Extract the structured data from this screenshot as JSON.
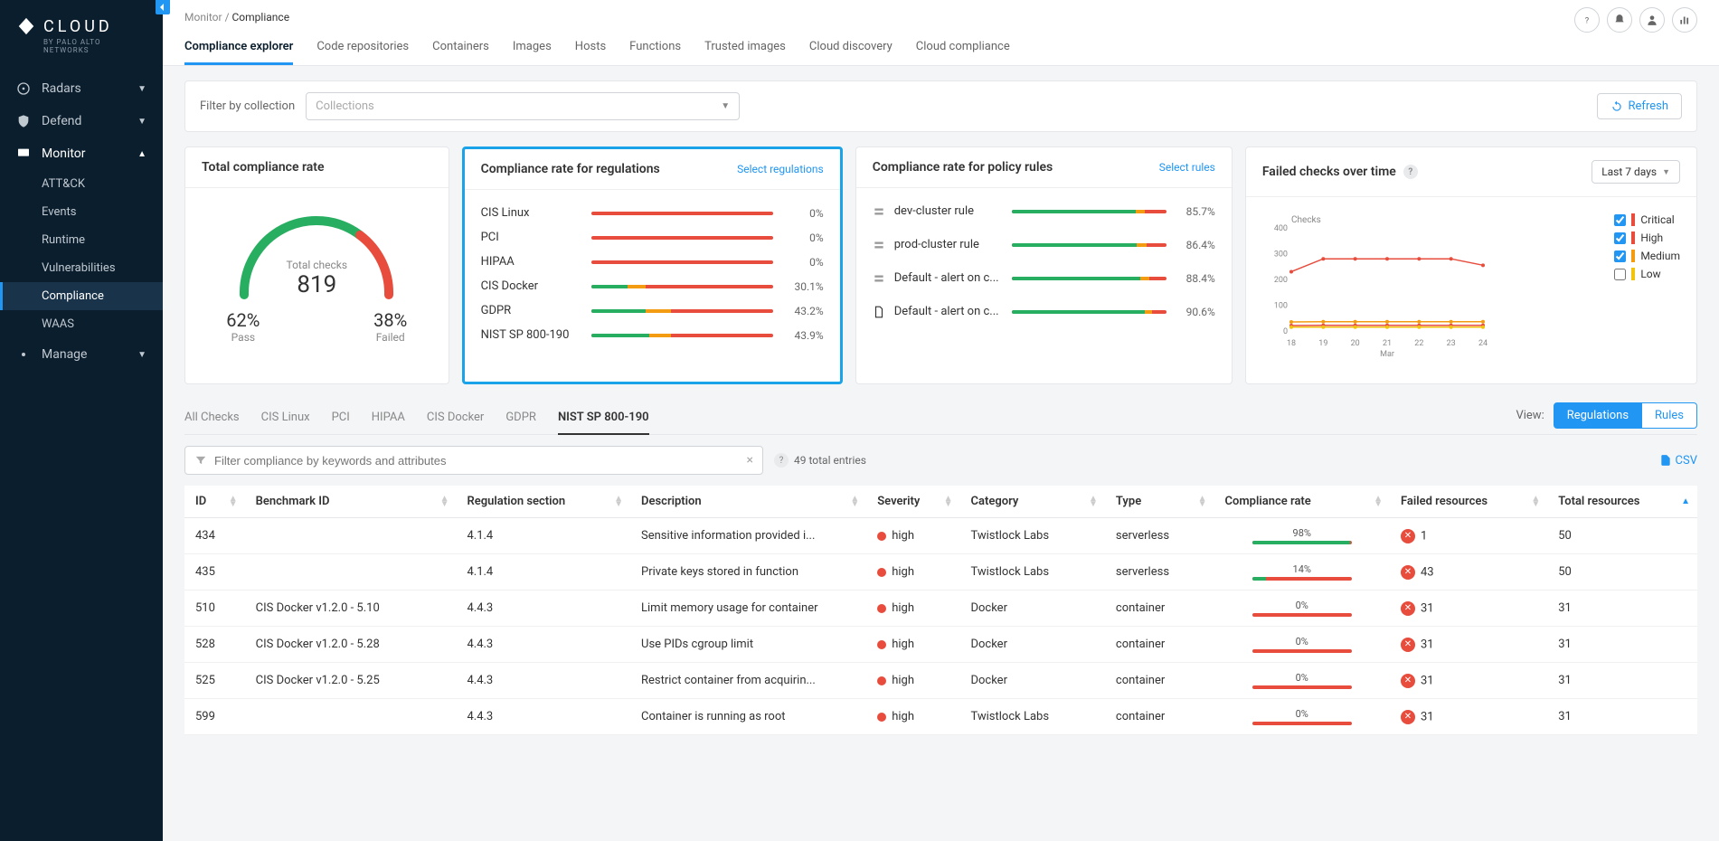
{
  "brand": {
    "name": "CLOUD",
    "sub": "BY PALO ALTO NETWORKS"
  },
  "breadcrumb": {
    "parent": "Monitor",
    "current": "Compliance"
  },
  "nav": {
    "items": [
      {
        "label": "Radars",
        "icon": "radar",
        "expanded": false
      },
      {
        "label": "Defend",
        "icon": "shield",
        "expanded": false
      },
      {
        "label": "Monitor",
        "icon": "monitor",
        "expanded": true,
        "children": [
          {
            "label": "ATT&CK"
          },
          {
            "label": "Events"
          },
          {
            "label": "Runtime"
          },
          {
            "label": "Vulnerabilities"
          },
          {
            "label": "Compliance",
            "active": true
          },
          {
            "label": "WAAS"
          }
        ]
      },
      {
        "label": "Manage",
        "icon": "gear",
        "expanded": false
      }
    ]
  },
  "tabs": [
    {
      "label": "Compliance explorer",
      "active": true
    },
    {
      "label": "Code repositories"
    },
    {
      "label": "Containers"
    },
    {
      "label": "Images"
    },
    {
      "label": "Hosts"
    },
    {
      "label": "Functions"
    },
    {
      "label": "Trusted images"
    },
    {
      "label": "Cloud discovery"
    },
    {
      "label": "Cloud compliance"
    }
  ],
  "filter": {
    "label": "Filter by collection",
    "placeholder": "Collections",
    "refresh": "Refresh"
  },
  "gauge": {
    "title": "Total compliance rate",
    "checks_label": "Total checks",
    "checks": "819",
    "pass_pct": "62%",
    "pass_lbl": "Pass",
    "fail_pct": "38%",
    "fail_lbl": "Failed",
    "pass_color": "#27ae60",
    "fail_color": "#e74c3c"
  },
  "regulations": {
    "title": "Compliance rate for regulations",
    "link": "Select regulations",
    "items": [
      {
        "name": "CIS Linux",
        "pct": "0%",
        "pass": 0
      },
      {
        "name": "PCI",
        "pct": "0%",
        "pass": 0
      },
      {
        "name": "HIPAA",
        "pct": "0%",
        "pass": 0
      },
      {
        "name": "CIS Docker",
        "pct": "30.1%",
        "pass": 20,
        "orange_start": 20,
        "orange_width": 10
      },
      {
        "name": "GDPR",
        "pct": "43.2%",
        "pass": 30,
        "orange_start": 30,
        "orange_width": 14
      },
      {
        "name": "NIST SP 800-190",
        "pct": "43.9%",
        "pass": 32,
        "orange_start": 32,
        "orange_width": 12
      }
    ]
  },
  "rules": {
    "title": "Compliance rate for policy rules",
    "link": "Select rules",
    "items": [
      {
        "name": "dev-cluster rule",
        "pct": "85.7%",
        "pass": 80,
        "orange_start": 80,
        "orange_width": 6,
        "icon": "host"
      },
      {
        "name": "prod-cluster rule",
        "pct": "86.4%",
        "pass": 81,
        "orange_start": 81,
        "orange_width": 6,
        "icon": "host"
      },
      {
        "name": "Default - alert on c...",
        "pct": "88.4%",
        "pass": 83,
        "orange_start": 83,
        "orange_width": 6,
        "icon": "host"
      },
      {
        "name": "Default - alert on c...",
        "pct": "90.6%",
        "pass": 86,
        "orange_start": 86,
        "orange_width": 5,
        "icon": "file"
      }
    ]
  },
  "chart": {
    "title": "Failed checks over time",
    "time_label": "Last 7 days",
    "y_label": "Checks",
    "y_max": 400,
    "y_ticks": [
      0,
      100,
      200,
      300,
      400
    ],
    "x_ticks": [
      "18",
      "19",
      "20",
      "21",
      "22",
      "23",
      "24"
    ],
    "x_label": "Mar",
    "series": [
      {
        "name": "Critical",
        "color": "#e74c3c",
        "checked": true,
        "points": [
          230,
          280,
          280,
          280,
          280,
          280,
          255
        ]
      },
      {
        "name": "High",
        "color": "#e74c3c",
        "checked": true,
        "points": [
          21,
          22,
          22,
          22,
          22,
          22,
          22
        ]
      },
      {
        "name": "Medium",
        "color": "#f39c12",
        "checked": true,
        "points": [
          35,
          36,
          36,
          36,
          36,
          36,
          36
        ]
      },
      {
        "name": "Low",
        "color": "#f1c40f",
        "checked": false,
        "points": [
          15,
          15,
          15,
          15,
          15,
          15,
          15
        ]
      }
    ]
  },
  "sub_tabs": [
    {
      "label": "All Checks"
    },
    {
      "label": "CIS Linux"
    },
    {
      "label": "PCI"
    },
    {
      "label": "HIPAA"
    },
    {
      "label": "CIS Docker"
    },
    {
      "label": "GDPR"
    },
    {
      "label": "NIST SP 800-190",
      "active": true
    }
  ],
  "view": {
    "label": "View:",
    "options": [
      "Regulations",
      "Rules"
    ],
    "active": "Regulations"
  },
  "compliance_filter": {
    "placeholder": "Filter compliance by keywords and attributes"
  },
  "entries": "49 total entries",
  "csv": "CSV",
  "columns": [
    "ID",
    "Benchmark ID",
    "Regulation section",
    "Description",
    "Severity",
    "Category",
    "Type",
    "Compliance rate",
    "Failed resources",
    "Total resources"
  ],
  "rows": [
    {
      "id": "434",
      "bench": "",
      "section": "4.1.4",
      "desc": "Sensitive information provided i...",
      "sev": "high",
      "cat": "Twistlock Labs",
      "type": "serverless",
      "rate": "98%",
      "rate_pass": 98,
      "failed": "1",
      "total": "50"
    },
    {
      "id": "435",
      "bench": "",
      "section": "4.1.4",
      "desc": "Private keys stored in function",
      "sev": "high",
      "cat": "Twistlock Labs",
      "type": "serverless",
      "rate": "14%",
      "rate_pass": 14,
      "failed": "43",
      "total": "50"
    },
    {
      "id": "510",
      "bench": "CIS Docker v1.2.0 - 5.10",
      "section": "4.4.3",
      "desc": "Limit memory usage for container",
      "sev": "high",
      "cat": "Docker",
      "type": "container",
      "rate": "0%",
      "rate_pass": 0,
      "failed": "31",
      "total": "31"
    },
    {
      "id": "528",
      "bench": "CIS Docker v1.2.0 - 5.28",
      "section": "4.4.3",
      "desc": "Use PIDs cgroup limit",
      "sev": "high",
      "cat": "Docker",
      "type": "container",
      "rate": "0%",
      "rate_pass": 0,
      "failed": "31",
      "total": "31"
    },
    {
      "id": "525",
      "bench": "CIS Docker v1.2.0 - 5.25",
      "section": "4.4.3",
      "desc": "Restrict container from acquirin...",
      "sev": "high",
      "cat": "Docker",
      "type": "container",
      "rate": "0%",
      "rate_pass": 0,
      "failed": "31",
      "total": "31"
    },
    {
      "id": "599",
      "bench": "",
      "section": "4.4.3",
      "desc": "Container is running as root",
      "sev": "high",
      "cat": "Twistlock Labs",
      "type": "container",
      "rate": "0%",
      "rate_pass": 0,
      "failed": "31",
      "total": "31"
    }
  ]
}
